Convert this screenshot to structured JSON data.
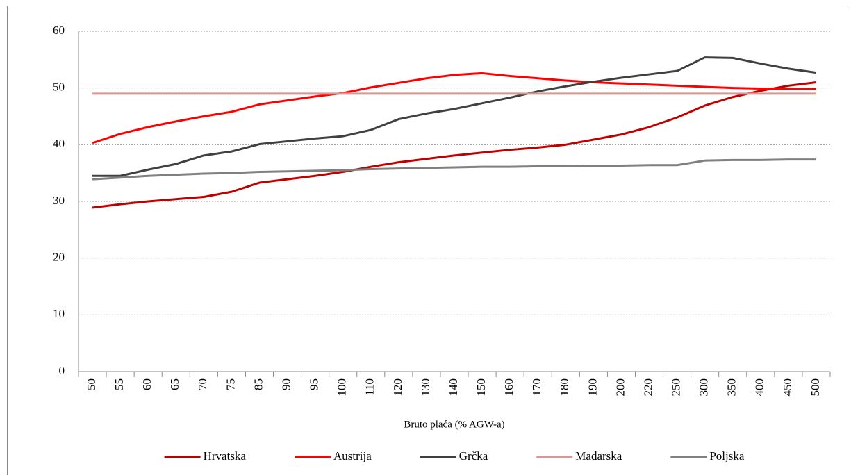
{
  "chart_data": {
    "type": "line",
    "x_label": "Bruto plaća (% AGW-a)",
    "categories": [
      "50",
      "55",
      "60",
      "65",
      "70",
      "75",
      "85",
      "90",
      "95",
      "100",
      "110",
      "120",
      "130",
      "140",
      "150",
      "160",
      "170",
      "180",
      "190",
      "200",
      "220",
      "250",
      "300",
      "350",
      "400",
      "450",
      "500"
    ],
    "series": [
      {
        "name": "Hrvatska",
        "color": "#c00000",
        "values": [
          28.9,
          29.5,
          30.0,
          30.4,
          30.8,
          31.7,
          33.3,
          33.9,
          34.5,
          35.2,
          36.1,
          36.9,
          37.5,
          38.1,
          38.6,
          39.1,
          39.5,
          40.0,
          40.9,
          41.8,
          43.1,
          44.8,
          46.9,
          48.4,
          49.5,
          50.4,
          51.0
        ]
      },
      {
        "name": "Austrija",
        "color": "#ff0000",
        "values": [
          40.3,
          41.9,
          43.1,
          44.1,
          45.0,
          45.8,
          47.1,
          47.8,
          48.5,
          49.1,
          50.1,
          50.9,
          51.7,
          52.3,
          52.6,
          52.1,
          51.7,
          51.3,
          51.0,
          50.8,
          50.6,
          50.4,
          50.2,
          50.0,
          49.9,
          49.8,
          49.8
        ]
      },
      {
        "name": "Grčka",
        "color": "#404040",
        "values": [
          34.5,
          34.5,
          35.6,
          36.6,
          38.1,
          38.8,
          40.1,
          40.6,
          41.1,
          41.5,
          42.6,
          44.5,
          45.5,
          46.3,
          47.3,
          48.3,
          49.4,
          50.3,
          51.1,
          51.8,
          52.4,
          53.0,
          55.4,
          55.3,
          54.3,
          53.4,
          52.7
        ]
      },
      {
        "name": "Mađarska",
        "color": "#d99694",
        "values": [
          49,
          49,
          49,
          49,
          49,
          49,
          49,
          49,
          49,
          49,
          49,
          49,
          49,
          49,
          49,
          49,
          49,
          49,
          49,
          49,
          49,
          49,
          49,
          49,
          49,
          49,
          49
        ]
      },
      {
        "name": "Poljska",
        "color": "#808080",
        "values": [
          33.9,
          34.2,
          34.5,
          34.7,
          34.9,
          35.0,
          35.2,
          35.3,
          35.4,
          35.5,
          35.7,
          35.8,
          35.9,
          36.0,
          36.1,
          36.1,
          36.2,
          36.2,
          36.3,
          36.3,
          36.4,
          36.4,
          37.2,
          37.3,
          37.3,
          37.4,
          37.4
        ]
      }
    ],
    "ylim": [
      0,
      60
    ],
    "yticks": [
      0,
      10,
      20,
      30,
      40,
      50,
      60
    ],
    "grid": true,
    "legend": "bottom"
  }
}
